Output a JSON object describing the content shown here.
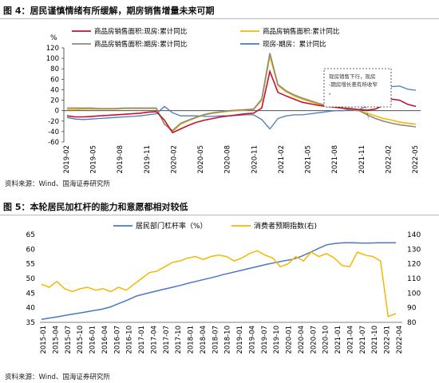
{
  "figures": [
    {
      "title": "图 4：居民谨慎情绪有所缓解，期房销售增量未来可期",
      "source": "资料来源：Wind、国海证券研究所"
    },
    {
      "title": "图 5：本轮居民加杠杆的能力和意愿都相对较低",
      "source": "资料来源：Wind、国海证券研究所"
    }
  ],
  "chart_data": [
    {
      "type": "line",
      "ylabel": "%",
      "ylim": [
        -60,
        120
      ],
      "yticks": [
        -60,
        -40,
        -20,
        0,
        20,
        40,
        60,
        80,
        100,
        120
      ],
      "xtick_labels": [
        "2019-02",
        "2019-05",
        "2019-08",
        "2019-11",
        "2020-02",
        "2020-05",
        "2020-08",
        "2020-11",
        "2021-02",
        "2021-05",
        "2021-08",
        "2021-11",
        "2022-02",
        "2022-05"
      ],
      "legend_position": "top",
      "annotation": "现房销售下行，现房-期房增长差有所收窄。",
      "colors": {
        "current": "#c8102e",
        "total": "#f5b800",
        "future": "#8c8c7c",
        "diff": "#4a78c2"
      },
      "series": [
        {
          "name": "商品房销售面积:现房:累计同比",
          "color": "#c8102e",
          "values": [
            -10,
            -12,
            -12,
            -11,
            -10,
            -9,
            -8,
            -7,
            -6,
            -5,
            -3,
            -2,
            -18,
            -42,
            -35,
            -28,
            -22,
            -18,
            -15,
            -12,
            -10,
            -8,
            -6,
            -5,
            5,
            75,
            35,
            28,
            22,
            16,
            13,
            10,
            8,
            7,
            5,
            4,
            2,
            1,
            3,
            10,
            22,
            20,
            12,
            8
          ]
        },
        {
          "name": "商品房销售面积:累计同比",
          "color": "#f5b800",
          "values": [
            2,
            2,
            3,
            3,
            3,
            3,
            3,
            4,
            4,
            4,
            4,
            4,
            -25,
            -40,
            -26,
            -19,
            -13,
            -8,
            -5,
            -3,
            -1,
            0,
            1,
            2,
            20,
            104,
            48,
            36,
            28,
            22,
            17,
            12,
            9,
            6,
            4,
            2,
            0,
            -5,
            -10,
            -15,
            -18,
            -22,
            -24,
            -26
          ]
        },
        {
          "name": "商品房销售面积:期房:累计同比",
          "color": "#8c8c7c",
          "values": [
            5,
            5,
            5,
            5,
            4,
            4,
            4,
            5,
            5,
            5,
            5,
            5,
            -26,
            -38,
            -24,
            -18,
            -12,
            -7,
            -4,
            -2,
            0,
            1,
            2,
            3,
            22,
            110,
            50,
            38,
            30,
            24,
            19,
            14,
            10,
            7,
            5,
            2,
            0,
            -8,
            -15,
            -20,
            -24,
            -27,
            -29,
            -31
          ]
        },
        {
          "name": "现房-期房：累计同比",
          "color": "#4a78c2",
          "values": [
            -13,
            -16,
            -17,
            -16,
            -15,
            -14,
            -13,
            -12,
            -11,
            -10,
            -8,
            -6,
            8,
            -4,
            -10,
            -10,
            -10,
            -11,
            -11,
            -10,
            -10,
            -9,
            -8,
            -8,
            -17,
            -35,
            -15,
            -10,
            -8,
            -8,
            -6,
            -4,
            -2,
            0,
            0,
            2,
            2,
            9,
            18,
            30,
            46,
            47,
            41,
            39
          ]
        }
      ]
    },
    {
      "type": "line",
      "ylim_left": [
        35,
        65
      ],
      "yticks_left": [
        35,
        40,
        45,
        50,
        55,
        60,
        65
      ],
      "ylim_right": [
        80,
        140
      ],
      "yticks_right": [
        80,
        90,
        100,
        110,
        120,
        130,
        140
      ],
      "xtick_labels": [
        "2015-01",
        "2015-04",
        "2015-07",
        "2015-10",
        "2016-01",
        "2016-04",
        "2016-07",
        "2016-10",
        "2017-01",
        "2017-04",
        "2017-07",
        "2017-10",
        "2018-01",
        "2018-04",
        "2018-07",
        "2018-10",
        "2019-01",
        "2019-04",
        "2019-07",
        "2019-10",
        "2020-01",
        "2020-04",
        "2020-07",
        "2020-10",
        "2021-01",
        "2021-04",
        "2021-07",
        "2021-10",
        "2022-01",
        "2022-04"
      ],
      "legend_position": "top",
      "colors": {
        "leverage": "#4a78c2",
        "expectation": "#f5b800"
      },
      "series": [
        {
          "name": "居民部门杠杆率（%）",
          "axis": "left",
          "color": "#4a78c2",
          "values": [
            36,
            36.5,
            37,
            37.5,
            38,
            38.5,
            39,
            39.5,
            40.3,
            41.5,
            42.7,
            44,
            44.8,
            45.5,
            46.2,
            46.9,
            47.6,
            48.4,
            49.1,
            49.8,
            50.5,
            51.3,
            52,
            52.7,
            53.4,
            54.1,
            54.8,
            55.4,
            56,
            56.5,
            57.5,
            58.8,
            60.2,
            61.5,
            62,
            62.2,
            62.2,
            62.1,
            62.1,
            62.2,
            62.2,
            62.2
          ]
        },
        {
          "name": "消费者预期指数(右)",
          "axis": "right",
          "color": "#f5b800",
          "values": [
            106,
            104,
            108,
            103,
            101,
            103,
            104,
            102,
            103,
            101,
            104,
            102,
            106,
            110,
            114,
            115,
            118,
            121,
            122,
            124,
            125,
            123,
            125,
            126,
            125,
            122,
            124,
            127,
            129,
            126,
            124,
            118,
            120,
            125,
            122,
            128,
            125,
            127,
            124,
            119,
            118,
            128,
            126,
            125,
            122,
            84,
            86
          ]
        }
      ]
    }
  ]
}
